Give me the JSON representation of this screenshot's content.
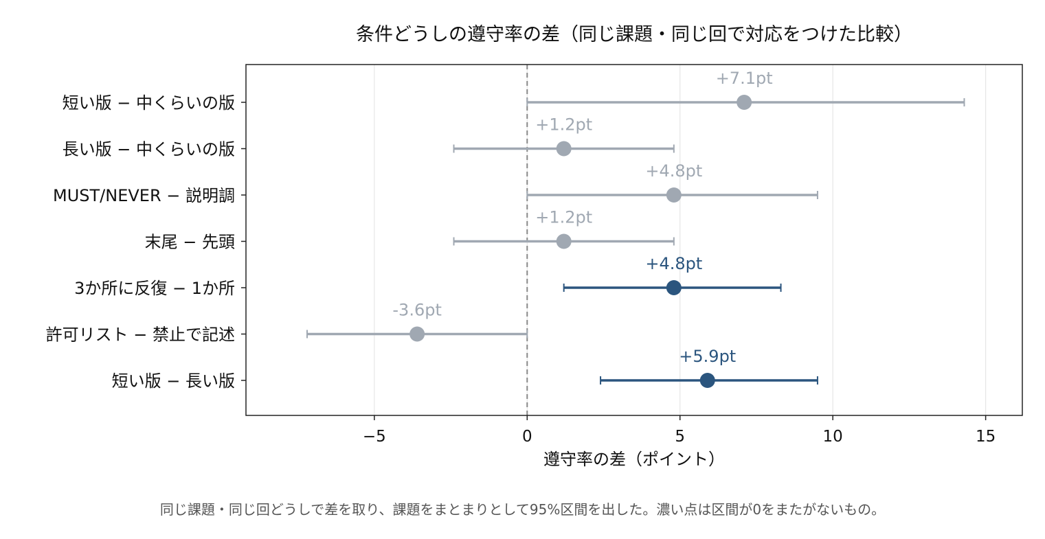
{
  "chart_data": {
    "type": "scatter",
    "title": "条件どうしの遵守率の差（同じ課題・同じ回で対応をつけた比較）",
    "xlabel": "遵守率の差（ポイント）",
    "ylabel": "",
    "caption": "同じ課題・同じ回どうしで差を取り、課題をまとまりとして95%区間を出した。濃い点は区間が0をまたがないもの。",
    "xlim": [
      -9.2,
      16.2
    ],
    "xticks": [
      -5,
      0,
      5,
      10,
      15
    ],
    "xtick_labels": [
      "−5",
      "0",
      "5",
      "10",
      "15"
    ],
    "reference_line": 0,
    "grid": "vertical",
    "colors": {
      "significant": "#2b557e",
      "not_significant": "#a0a8b2"
    },
    "comparisons": [
      {
        "label": "短い版 − 中くらいの版",
        "estimate": 7.1,
        "ci_low": 0.0,
        "ci_high": 14.3,
        "significant": false,
        "annotation": "+7.1pt"
      },
      {
        "label": "長い版 − 中くらいの版",
        "estimate": 1.2,
        "ci_low": -2.4,
        "ci_high": 4.8,
        "significant": false,
        "annotation": "+1.2pt"
      },
      {
        "label": "MUST/NEVER − 説明調",
        "estimate": 4.8,
        "ci_low": 0.0,
        "ci_high": 9.5,
        "significant": false,
        "annotation": "+4.8pt"
      },
      {
        "label": "末尾 − 先頭",
        "estimate": 1.2,
        "ci_low": -2.4,
        "ci_high": 4.8,
        "significant": false,
        "annotation": "+1.2pt"
      },
      {
        "label": "3か所に反復 − 1か所",
        "estimate": 4.8,
        "ci_low": 1.2,
        "ci_high": 8.3,
        "significant": true,
        "annotation": "+4.8pt"
      },
      {
        "label": "許可リスト − 禁止で記述",
        "estimate": -3.6,
        "ci_low": -7.2,
        "ci_high": 0.0,
        "significant": false,
        "annotation": "-3.6pt"
      },
      {
        "label": "短い版 − 長い版",
        "estimate": 5.9,
        "ci_low": 2.4,
        "ci_high": 9.5,
        "significant": true,
        "annotation": "+5.9pt"
      }
    ]
  }
}
